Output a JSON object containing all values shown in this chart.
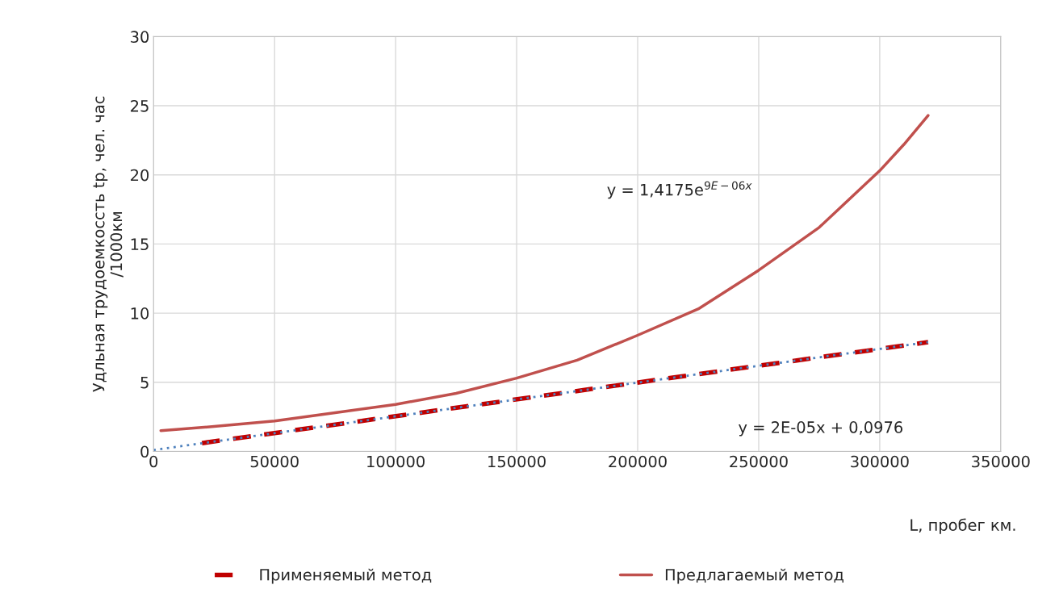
{
  "chart_data": {
    "type": "line",
    "xlabel": "L, пробег км.",
    "ylabel": "Удльная трудоемкосcть tр, чел. час\n/1000км",
    "xlim": [
      0,
      350000
    ],
    "xticks": [
      0,
      50000,
      100000,
      150000,
      200000,
      250000,
      300000,
      350000
    ],
    "ylim": [
      0,
      30
    ],
    "yticks": [
      0,
      5,
      10,
      15,
      20,
      25,
      30
    ],
    "grid": true,
    "legend": "bottom",
    "series": [
      {
        "name": "Применяемый метод",
        "color": "#c00000",
        "line_style": "dashed",
        "x": [
          20000,
          320000
        ],
        "values": [
          0.6,
          7.9
        ]
      },
      {
        "name": "Предлагаемый метод",
        "color": "#c0504d",
        "line_style": "solid",
        "x": [
          3000,
          25000,
          50000,
          75000,
          100000,
          125000,
          150000,
          175000,
          200000,
          225000,
          250000,
          275000,
          300000,
          310000,
          320000
        ],
        "values": [
          1.5,
          1.8,
          2.2,
          2.8,
          3.4,
          4.2,
          5.3,
          6.6,
          8.4,
          10.3,
          13.1,
          16.2,
          20.3,
          22.2,
          24.3
        ]
      },
      {
        "color": "#4f81bd",
        "line_style": "dotted",
        "x": [
          0,
          320000
        ],
        "values": [
          0.1,
          7.9
        ]
      }
    ],
    "annotations": [
      "y = 1,4175e$^{9E−06x}$",
      "y = 2E-05x + 0,0976"
    ]
  }
}
